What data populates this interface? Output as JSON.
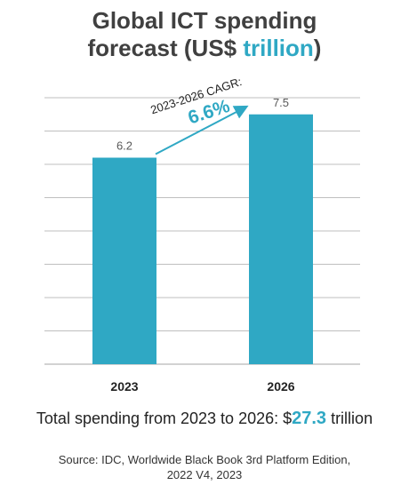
{
  "colors": {
    "accent": "#2fa8c4",
    "text": "#404040",
    "grid": "#bfbfbf"
  },
  "header": {
    "title_line1": "Global ICT spending",
    "title_line2_prefix": "forecast (US$ ",
    "title_line2_accent": "trillion",
    "title_line2_suffix": ")"
  },
  "chart_data": {
    "type": "bar",
    "categories": [
      "2023",
      "2026"
    ],
    "values": [
      6.2,
      7.5
    ],
    "ylim": [
      0,
      8
    ],
    "grid": true,
    "annotation": {
      "label": "2023-2026 CAGR:",
      "value": "6.6%"
    }
  },
  "footer": {
    "total_prefix": "Total spending  from 2023 to 2026: $",
    "total_value": "27.3",
    "total_suffix": " trillion",
    "source_line1": "Source: IDC, Worldwide Black Book 3rd Platform Edition,",
    "source_line2": "2022 V4, 2023"
  }
}
